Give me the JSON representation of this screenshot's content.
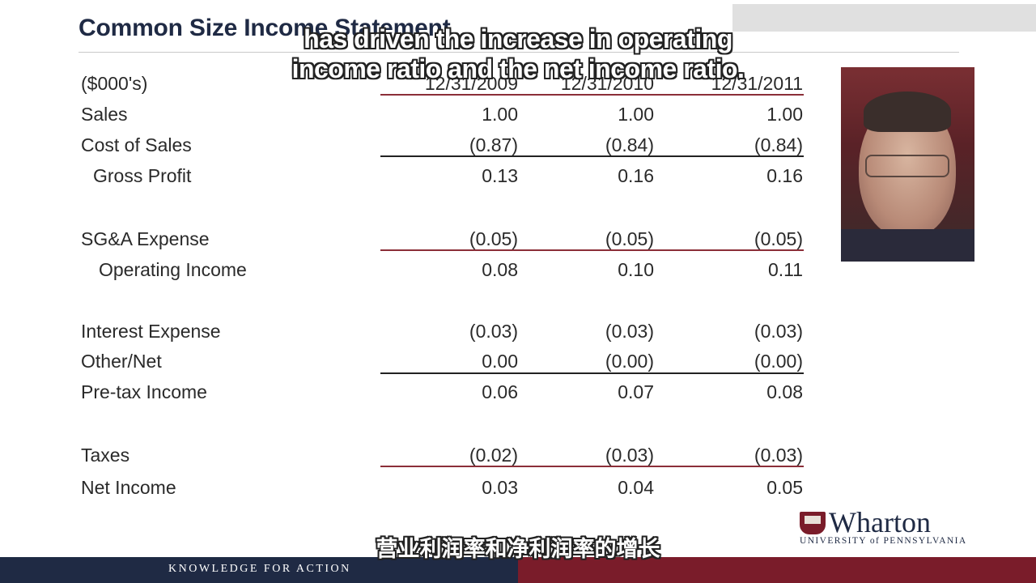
{
  "title": "Common Size Income Statement",
  "units_label": "($000's)",
  "columns": [
    "12/31/2009",
    "12/31/2010",
    "12/31/2011"
  ],
  "rows": {
    "sales": {
      "label": "Sales",
      "values": [
        "1.00",
        "1.00",
        "1.00"
      ]
    },
    "cost_of_sales": {
      "label": "Cost of Sales",
      "values": [
        "(0.87)",
        "(0.84)",
        "(0.84)"
      ]
    },
    "gross_profit": {
      "label": "Gross Profit",
      "values": [
        "0.13",
        "0.16",
        "0.16"
      ]
    },
    "sga": {
      "label": "SG&A Expense",
      "values": [
        "(0.05)",
        "(0.05)",
        "(0.05)"
      ]
    },
    "operating_income": {
      "label": "Operating Income",
      "values": [
        "0.08",
        "0.10",
        "0.11"
      ]
    },
    "interest": {
      "label": "Interest Expense",
      "values": [
        "(0.03)",
        "(0.03)",
        "(0.03)"
      ]
    },
    "other": {
      "label": "Other/Net",
      "values": [
        "0.00",
        "(0.00)",
        "(0.00)"
      ]
    },
    "pretax": {
      "label": "Pre-tax Income",
      "values": [
        "0.06",
        "0.07",
        "0.08"
      ]
    },
    "taxes": {
      "label": "Taxes",
      "values": [
        "(0.02)",
        "(0.03)",
        "(0.03)"
      ]
    },
    "net_income": {
      "label": "Net Income",
      "values": [
        "0.03",
        "0.04",
        "0.05"
      ]
    }
  },
  "subtitles": {
    "en_line1": "has driven the increase in operating",
    "en_line2": "income ratio and the net income ratio.",
    "zh": "营业利润率和净利润率的增长"
  },
  "logo": {
    "name": "Wharton",
    "sub": "UNIVERSITY of PENNSYLVANIA"
  },
  "footer": {
    "tagline": "KNOWLEDGE FOR ACTION"
  },
  "colors": {
    "navy": "#1f2a44",
    "maroon": "#7a1c2a",
    "rule_red": "#8b2e38"
  }
}
